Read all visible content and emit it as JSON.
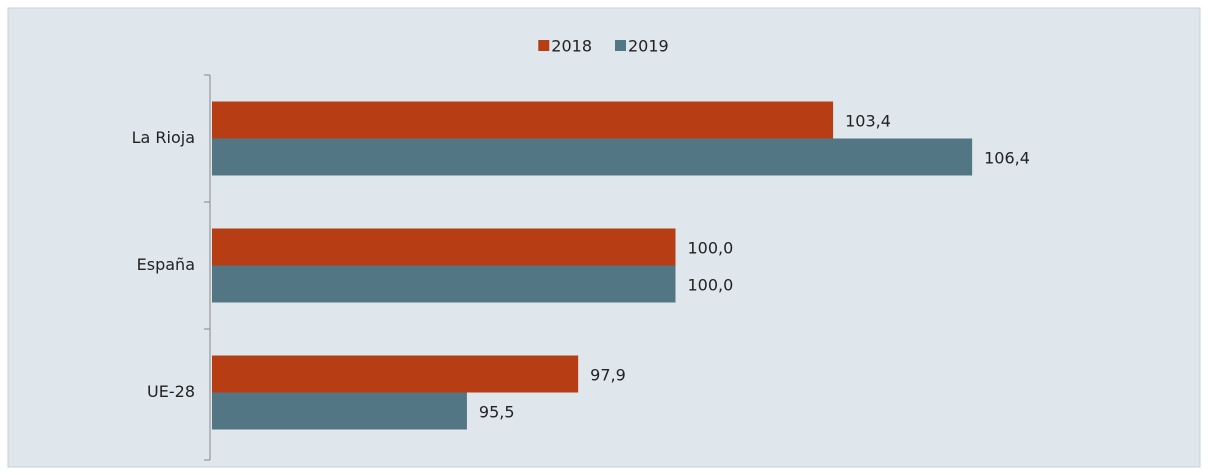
{
  "chart_data": {
    "type": "hbar",
    "categories": [
      "La Rioja",
      "España",
      "UE-28"
    ],
    "series": [
      {
        "name": "2018",
        "color": "#b63d14",
        "values": [
          103.4,
          100.0,
          97.9
        ],
        "value_labels": [
          "103,4",
          "100,0",
          "97,9"
        ]
      },
      {
        "name": "2019",
        "color": "#527684",
        "values": [
          106.4,
          100.0,
          95.5
        ],
        "value_labels": [
          "106,4",
          "100,0",
          "95,5"
        ]
      }
    ],
    "xlim": [
      90,
      110
    ],
    "legend": "top"
  }
}
